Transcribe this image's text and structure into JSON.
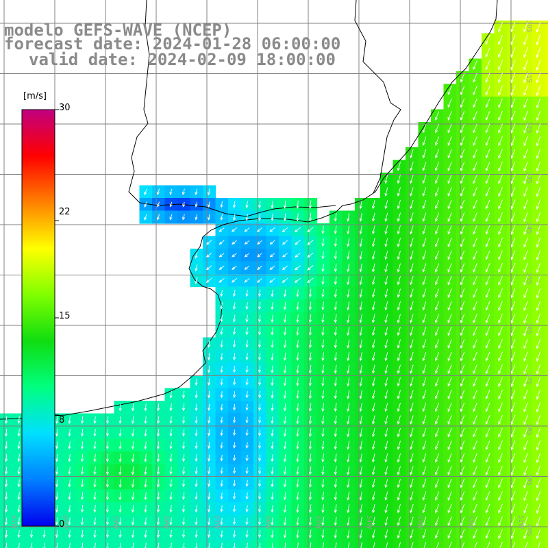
{
  "titles": {
    "model": "modelo GEFS-WAVE (NCEP)",
    "forecast": "forecast date: 2024-01-28 06:00:00",
    "valid": "valid date: 2024-02-09 18:00:00"
  },
  "colorbar": {
    "units": "[m/s]",
    "min": 0,
    "max": 30,
    "tick_labels": [
      "30",
      "22",
      "15",
      "8",
      "0"
    ],
    "tick_values": [
      30,
      22,
      15,
      8,
      0
    ],
    "colors": [
      "#0000ee",
      "#0080ff",
      "#00e0ff",
      "#00ff80",
      "#10dd10",
      "#80ff00",
      "#ffff00",
      "#ff8000",
      "#ff0000",
      "#c00080"
    ]
  },
  "map": {
    "longitude_labels": [
      "61W",
      "60W",
      "59W",
      "58W",
      "57W",
      "56W",
      "55W",
      "54W",
      "53W",
      "52W",
      "51W"
    ],
    "latitude_labels": [
      "30S",
      "31S",
      "32S",
      "33S",
      "34S",
      "35S",
      "36S",
      "37S",
      "38S",
      "39S",
      "40S"
    ],
    "colors": {
      "land": "#ffffff",
      "grid": "#808080",
      "coast": "#000000",
      "arrows": "#ffffff"
    }
  }
}
